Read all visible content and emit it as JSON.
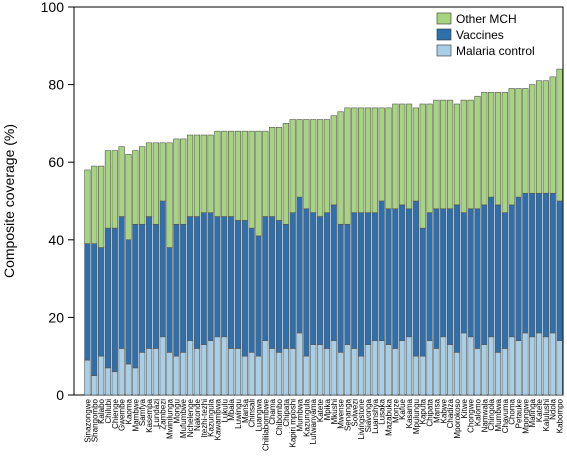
{
  "chart_data": {
    "type": "bar",
    "stacked": true,
    "title": "",
    "xlabel": "",
    "ylabel": "Composite coverage (%)",
    "ylim": [
      0,
      100
    ],
    "yticks": [
      0,
      20,
      40,
      60,
      80,
      100
    ],
    "legend_position": "top-right",
    "colors": {
      "malaria": "#a8cfe6",
      "vaccines": "#2e6fae",
      "other": "#a6d47f",
      "stroke": "#555555"
    },
    "categories": [
      "Sinazongwe",
      "Shangombo",
      "Kalabo",
      "Chilubi",
      "Chienge",
      "Gwembe",
      "Kaoma",
      "Mambwe",
      "Samfya",
      "Kasempa",
      "Lundazi",
      "Zambezi",
      "Mwinilunga",
      "Mongu",
      "Mufumbwe",
      "Nchelenge",
      "Nakonde",
      "Itezhi-tezhi",
      "Kazungula",
      "Kawambwa",
      "Lukulu",
      "Mbala",
      "Luwingu",
      "Mansa",
      "Chinsali",
      "Luangwa",
      "Chililabombwe",
      "Chama",
      "Chibombo",
      "Chipata",
      "Kapiri mposhi",
      "Mumbwa",
      "Kazungula",
      "Lufwanyama",
      "Katete",
      "Mpika",
      "Mkushi",
      "Mwense",
      "Senanga",
      "Solwezi",
      "Livingstone",
      "Siavonga",
      "Luanshya",
      "Lusaka",
      "Mazabuka",
      "Monze",
      "Kafue",
      "Kasama",
      "Mpulungu",
      "Kaputa",
      "Chipata",
      "Mansa",
      "Kabwe",
      "Chadiza",
      "Mporokoso",
      "Kitwe",
      "Chongwe",
      "Kalomo",
      "Namwala",
      "Chingola",
      "Mumbwa",
      "Chavuma",
      "Choma",
      "Petauke",
      "Mpongwe",
      "Mafinga",
      "Katete",
      "Kalulushi",
      "Ndola",
      "Kabompo"
    ],
    "series": [
      {
        "name": "Malaria control",
        "values": [
          9,
          5,
          10,
          7,
          6,
          12,
          8,
          7,
          11,
          12,
          12,
          15,
          11,
          10,
          11,
          14,
          12,
          13,
          14,
          15,
          15,
          12,
          12,
          10,
          11,
          10,
          14,
          12,
          11,
          12,
          12,
          16,
          10,
          13,
          13,
          12,
          14,
          11,
          13,
          12,
          10,
          13,
          14,
          14,
          13,
          12,
          14,
          15,
          10,
          10,
          14,
          12,
          15,
          13,
          11,
          16,
          15,
          12,
          13,
          15,
          11,
          12,
          15,
          14,
          16,
          15,
          16,
          15,
          16,
          14
        ]
      },
      {
        "name": "Vaccines",
        "values": [
          30,
          34,
          28,
          36,
          37,
          34,
          32,
          37,
          33,
          34,
          32,
          35,
          27,
          34,
          33,
          32,
          34,
          34,
          33,
          31,
          31,
          34,
          33,
          35,
          32,
          31,
          32,
          34,
          34,
          32,
          35,
          35,
          38,
          34,
          33,
          35,
          35,
          33,
          31,
          35,
          37,
          34,
          33,
          36,
          35,
          36,
          35,
          33,
          40,
          33,
          33,
          36,
          33,
          35,
          38,
          31,
          33,
          36,
          36,
          36,
          38,
          35,
          34,
          37,
          36,
          37,
          36,
          37,
          36,
          36
        ]
      },
      {
        "name": "Other MCH",
        "values": [
          19,
          20,
          21,
          20,
          20,
          18,
          22,
          19,
          20,
          19,
          21,
          15,
          27,
          22,
          22,
          21,
          21,
          20,
          20,
          22,
          22,
          22,
          23,
          23,
          25,
          27,
          22,
          23,
          24,
          26,
          24,
          20,
          23,
          24,
          25,
          24,
          23,
          29,
          30,
          27,
          27,
          27,
          27,
          24,
          26,
          27,
          26,
          27,
          24,
          32,
          28,
          28,
          28,
          28,
          26,
          29,
          28,
          29,
          29,
          27,
          29,
          31,
          30,
          28,
          27,
          28,
          29,
          29,
          30,
          34
        ]
      }
    ],
    "legend": [
      "Other MCH",
      "Vaccines",
      "Malaria control"
    ]
  }
}
